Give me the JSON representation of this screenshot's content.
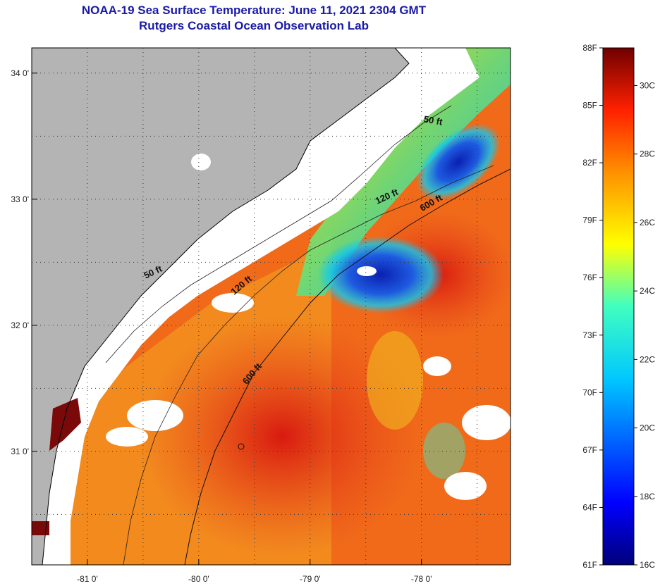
{
  "header": {
    "title": "NOAA-19 Sea Surface Temperature:  June 11, 2021 2304 GMT",
    "subtitle": "Rutgers Coastal Ocean Observation Lab"
  },
  "map": {
    "lon_range": [
      -81.5,
      -77.2
    ],
    "lat_range": [
      30.1,
      34.2
    ],
    "lon_ticks": [
      {
        "value": -81,
        "label": "-81 0'"
      },
      {
        "value": -80,
        "label": "-80 0'"
      },
      {
        "value": -79,
        "label": "-79 0'"
      },
      {
        "value": -78,
        "label": "-78 0'"
      }
    ],
    "lat_ticks": [
      {
        "value": 34,
        "label": "34 0'"
      },
      {
        "value": 33,
        "label": "33 0'"
      },
      {
        "value": 32,
        "label": "32 0'"
      },
      {
        "value": 31,
        "label": "31 0'"
      }
    ],
    "contour_labels": [
      {
        "text": "50 ft",
        "lon": -77.9,
        "lat": 33.6,
        "angle": 10
      },
      {
        "text": "120 ft",
        "lon": -78.3,
        "lat": 33.0,
        "angle": -25
      },
      {
        "text": "600 ft",
        "lon": -77.9,
        "lat": 32.95,
        "angle": -30
      },
      {
        "text": "50 ft",
        "lon": -80.4,
        "lat": 32.4,
        "angle": -25
      },
      {
        "text": "120 ft",
        "lon": -79.6,
        "lat": 32.3,
        "angle": -40
      },
      {
        "text": "600 ft",
        "lon": -79.5,
        "lat": 31.6,
        "angle": -50
      }
    ],
    "colors": {
      "land": "#b4b4b4",
      "coast_band": "#ffffff",
      "warm": "#e8401c",
      "hot": "#d81a10",
      "cold": "#0a2ac8",
      "cyan": "#00c8ff",
      "missing": "#ffffff"
    }
  },
  "colorbar": {
    "fahrenheit": [
      "88F",
      "85F",
      "82F",
      "79F",
      "76F",
      "73F",
      "70F",
      "67F",
      "64F",
      "61F"
    ],
    "celsius": [
      "30C",
      "28C",
      "26C",
      "24C",
      "22C",
      "20C",
      "18C",
      "16C"
    ],
    "range_f": [
      61,
      88
    ],
    "range_c": [
      16,
      31.1
    ]
  }
}
